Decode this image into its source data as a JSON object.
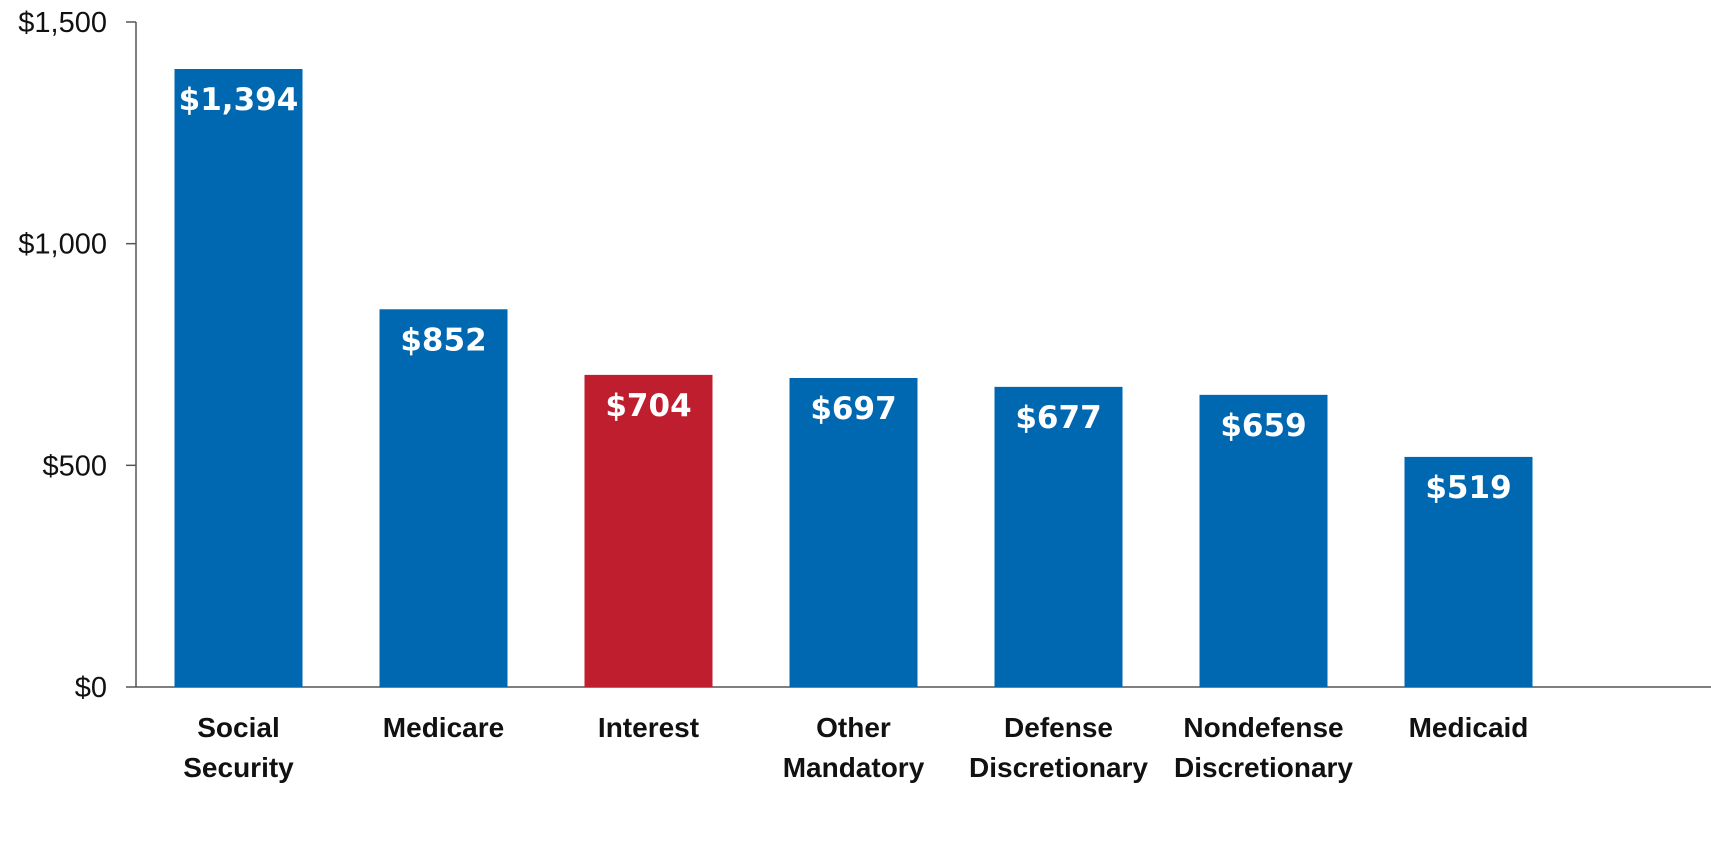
{
  "chart_data": {
    "type": "bar",
    "categories": [
      [
        "Social",
        "Security"
      ],
      [
        "Medicare"
      ],
      [
        "Interest"
      ],
      [
        "Other",
        "Mandatory"
      ],
      [
        "Defense",
        "Discretionary"
      ],
      [
        "Nondefense",
        "Discretionary"
      ],
      [
        "Medicaid"
      ]
    ],
    "values": [
      1394,
      852,
      704,
      697,
      677,
      659,
      519
    ],
    "value_labels": [
      "$1,394",
      "$852",
      "$704",
      "$697",
      "$677",
      "$659",
      "$519"
    ],
    "colors": [
      "#0067b1",
      "#0067b1",
      "#bf1e2e",
      "#0067b1",
      "#0067b1",
      "#0067b1",
      "#0067b1"
    ],
    "ylim": [
      0,
      1500
    ],
    "yticks": [
      0,
      500,
      1000,
      1500
    ],
    "ytick_labels": [
      "$0",
      "$500",
      "$1,000",
      "$1,500"
    ],
    "title": "",
    "xlabel": "",
    "ylabel": "",
    "grid": false,
    "legend": false
  }
}
